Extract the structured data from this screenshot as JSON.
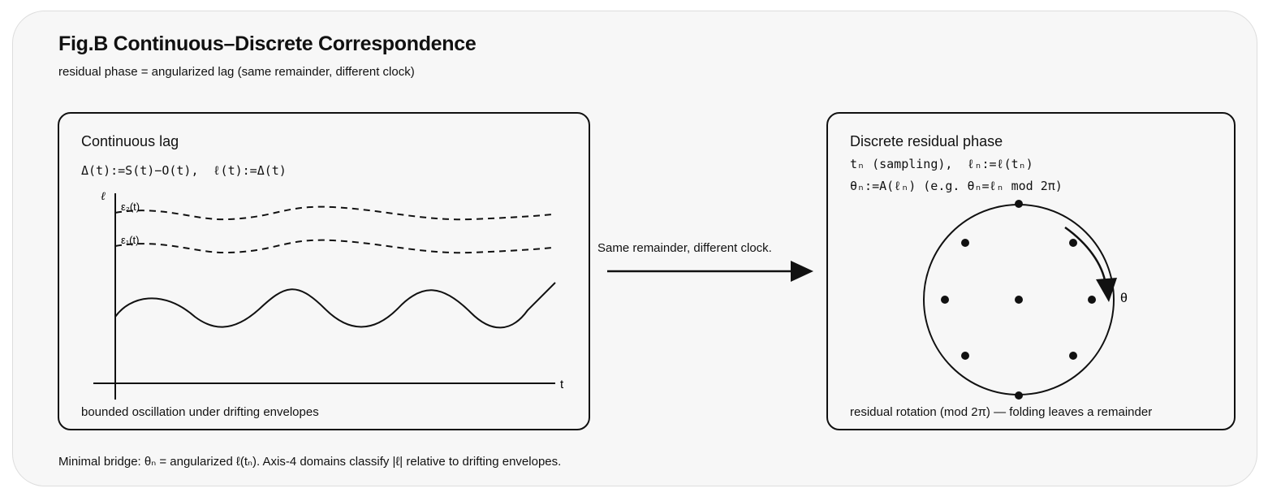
{
  "figure": {
    "title": "Fig.B Continuous–Discrete Correspondence",
    "subtitle": "residual phase = angularized lag (same remainder, different clock)",
    "footer": "Minimal bridge: θₙ = angularized ℓ(tₙ). Axis-4 domains classify |ℓ| relative to drifting envelopes."
  },
  "left_panel": {
    "title": "Continuous lag",
    "formula": "Δ(t):=S(t)−O(t),  ℓ(t):=Δ(t)",
    "y_axis_label": "ℓ",
    "x_axis_label": "t",
    "envelope_upper_label": "ε₂(t)",
    "envelope_lower_label": "ε₁(t)",
    "caption": "bounded oscillation under drifting envelopes"
  },
  "connector": {
    "label": "Same remainder, different clock."
  },
  "right_panel": {
    "title": "Discrete residual phase",
    "formula_1": "tₙ (sampling),  ℓₙ:=ℓ(tₙ)",
    "formula_2": "θₙ:=A(ℓₙ) (e.g. θₙ=ℓₙ mod 2π)",
    "angle_label": "θ",
    "caption": "residual rotation (mod 2π) — folding leaves a remainder"
  }
}
